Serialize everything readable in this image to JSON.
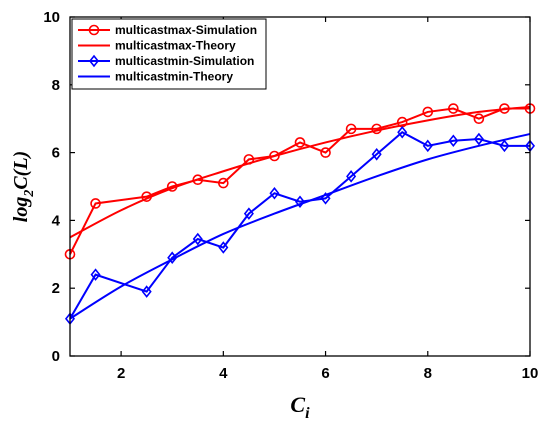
{
  "chart_data": {
    "type": "line",
    "xlabel": {
      "main": "C",
      "sub": "i"
    },
    "ylabel": {
      "pre": "log",
      "sub": "2",
      "post": "C(L)"
    },
    "xlim": [
      1,
      10
    ],
    "ylim": [
      0,
      10
    ],
    "xticks": [
      2,
      4,
      6,
      8,
      10
    ],
    "yticks": [
      0,
      2,
      4,
      6,
      8,
      10
    ],
    "grid": false,
    "legend": "top-left",
    "series": [
      {
        "name": "multicastmax-Simulation",
        "color": "#ff0000",
        "marker": "circle",
        "x": [
          1,
          1.5,
          2.5,
          3,
          3.5,
          4,
          4.5,
          5,
          5.5,
          6,
          6.5,
          7,
          7.5,
          8,
          8.5,
          9,
          9.5,
          10
        ],
        "y": [
          3.0,
          4.5,
          4.7,
          5.0,
          5.2,
          5.1,
          5.8,
          5.9,
          6.3,
          6.0,
          6.7,
          6.7,
          6.9,
          7.2,
          7.3,
          7.0,
          7.3,
          7.3
        ]
      },
      {
        "name": "multicastmax-Theory",
        "color": "#ff0000",
        "marker": "none",
        "x": [
          1,
          2,
          3,
          4,
          5,
          6,
          7,
          8,
          9,
          10
        ],
        "y": [
          3.5,
          4.3,
          4.95,
          5.45,
          5.9,
          6.3,
          6.65,
          6.95,
          7.2,
          7.35
        ]
      },
      {
        "name": "multicastmin-Simulation",
        "color": "#0000ff",
        "marker": "diamond",
        "x": [
          1,
          1.5,
          2.5,
          3,
          3.5,
          4,
          4.5,
          5,
          5.5,
          6,
          6.5,
          7,
          7.5,
          8,
          8.5,
          9,
          9.5,
          10
        ],
        "y": [
          1.1,
          2.4,
          1.9,
          2.9,
          3.45,
          3.2,
          4.2,
          4.8,
          4.55,
          4.65,
          5.3,
          5.95,
          6.6,
          6.2,
          6.35,
          6.4,
          6.2,
          6.2
        ]
      },
      {
        "name": "multicastmin-Theory",
        "color": "#0000ff",
        "marker": "none",
        "x": [
          1,
          2,
          3,
          4,
          5,
          6,
          7,
          8,
          9,
          10
        ],
        "y": [
          1.1,
          2.05,
          2.85,
          3.6,
          4.2,
          4.75,
          5.3,
          5.8,
          6.2,
          6.55
        ]
      }
    ]
  }
}
